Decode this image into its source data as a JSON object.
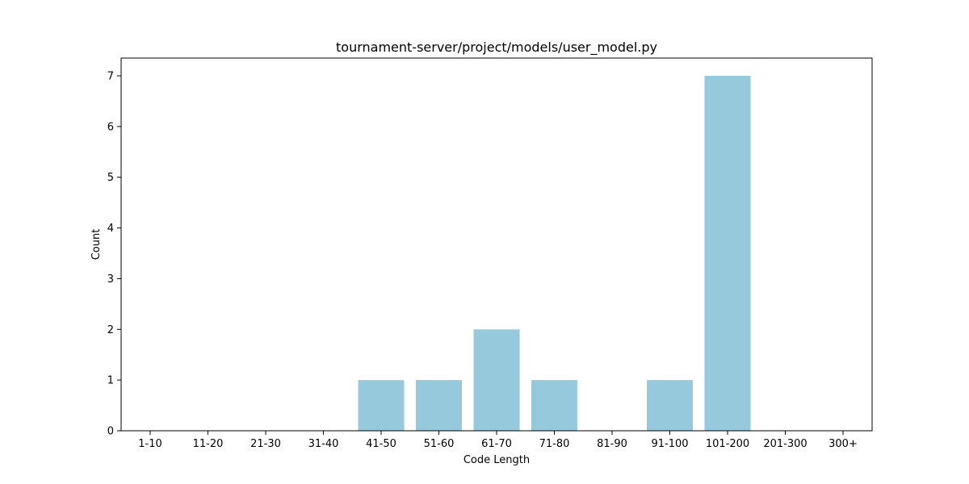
{
  "chart_data": {
    "type": "bar",
    "title": "tournament-server/project/models/user_model.py",
    "xlabel": "Code Length",
    "ylabel": "Count",
    "categories": [
      "1-10",
      "11-20",
      "21-30",
      "31-40",
      "41-50",
      "51-60",
      "61-70",
      "71-80",
      "81-90",
      "91-100",
      "101-200",
      "201-300",
      "300+"
    ],
    "values": [
      0,
      0,
      0,
      0,
      1,
      1,
      2,
      1,
      0,
      1,
      7,
      0,
      0
    ],
    "yticks": [
      0,
      1,
      2,
      3,
      4,
      5,
      6,
      7
    ],
    "ylim": [
      0,
      7.35
    ],
    "grid": false,
    "bar_color": "#96c9dc",
    "axis_color": "#000000"
  }
}
